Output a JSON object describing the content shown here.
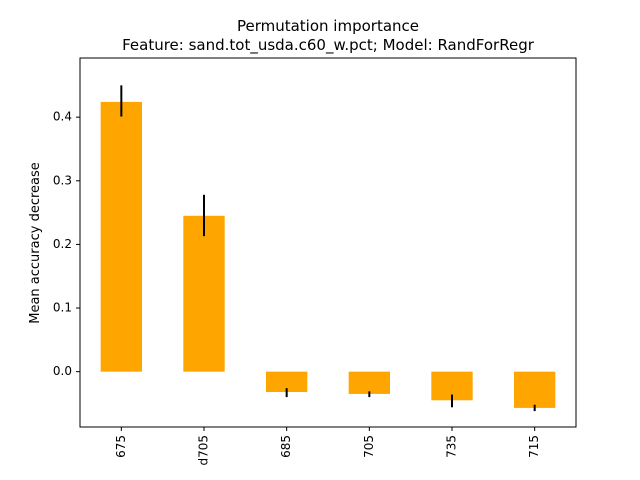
{
  "chart_data": {
    "type": "bar",
    "title": "Permutation importance",
    "subtitle": "Feature: sand.tot_usda.c60_w.pct; Model: RandForRegr",
    "xlabel": "",
    "ylabel": "Mean accuracy decrease",
    "categories": [
      "675",
      "d705",
      "685",
      "705",
      "735",
      "715"
    ],
    "values": [
      0.424,
      0.245,
      -0.032,
      -0.035,
      -0.045,
      -0.057
    ],
    "error_low": [
      0.401,
      0.213,
      -0.04,
      -0.04,
      -0.056,
      -0.062
    ],
    "error_high": [
      0.45,
      0.278,
      -0.026,
      -0.031,
      -0.036,
      -0.052
    ],
    "ylim": [
      -0.087,
      0.493
    ],
    "yticks": [
      0.0,
      0.1,
      0.2,
      0.3,
      0.4
    ],
    "ytick_labels": [
      "0.0",
      "0.1",
      "0.2",
      "0.3",
      "0.4"
    ],
    "bar_color": "#ffa500",
    "error_color": "#000000",
    "grid": false,
    "legend": "none"
  }
}
